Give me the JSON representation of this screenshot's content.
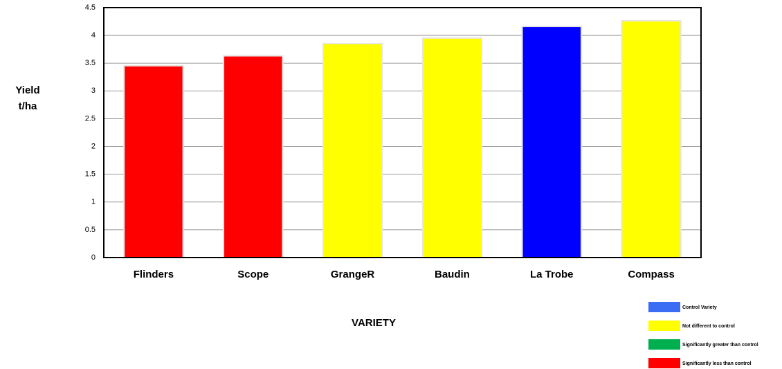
{
  "chart_data": {
    "type": "bar",
    "y_label": [
      "Yield",
      "t/ha"
    ],
    "x_label": "VARIETY",
    "categories": [
      "Flinders",
      "Scope",
      "GrangeR",
      "Baudin",
      "La Trobe",
      "Compass"
    ],
    "values": [
      3.44,
      3.62,
      3.84,
      3.94,
      4.15,
      4.25
    ],
    "colors": [
      "#ff0000",
      "#ff0000",
      "#ffff00",
      "#ffff00",
      "#0000ff",
      "#ffff00"
    ],
    "ylim": [
      0,
      4.5
    ],
    "yticks": [
      0,
      0.5,
      1,
      1.5,
      2,
      2.5,
      3,
      3.5,
      4,
      4.5
    ],
    "grid": true,
    "legend": [
      {
        "name": "Control Variety",
        "color": "#3a6cf4"
      },
      {
        "name": "Not different to control",
        "color": "#ffff00"
      },
      {
        "name": "Significantly greater than control",
        "color": "#00b050"
      },
      {
        "name": "Significantly less than control",
        "color": "#ff0000"
      }
    ]
  }
}
